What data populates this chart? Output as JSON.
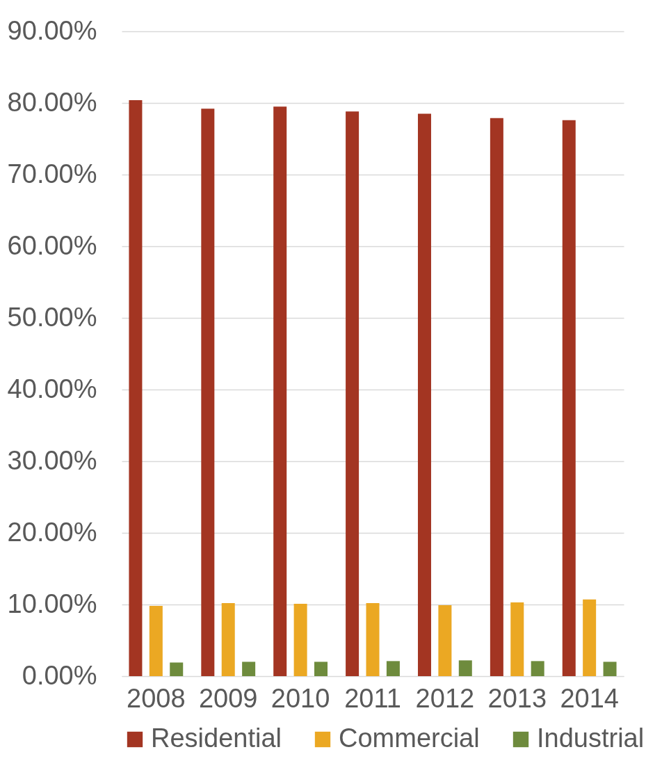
{
  "chart_data": {
    "type": "bar",
    "categories": [
      "2008",
      "2009",
      "2010",
      "2011",
      "2012",
      "2013",
      "2014"
    ],
    "series": [
      {
        "name": "Residential",
        "color": "#a33522",
        "values": [
          80.4,
          79.2,
          79.5,
          78.8,
          78.5,
          77.9,
          77.6
        ]
      },
      {
        "name": "Commercial",
        "color": "#eba823",
        "values": [
          9.8,
          10.2,
          10.1,
          10.2,
          9.9,
          10.3,
          10.7
        ]
      },
      {
        "name": "Industrial",
        "color": "#6e8b3d",
        "values": [
          1.9,
          2.0,
          2.0,
          2.1,
          2.2,
          2.1,
          2.0
        ]
      }
    ],
    "ylim": [
      0,
      90
    ],
    "yticks": [
      {
        "value": 0,
        "label": "0.00%"
      },
      {
        "value": 10,
        "label": "10.00%"
      },
      {
        "value": 20,
        "label": "20.00%"
      },
      {
        "value": 30,
        "label": "30.00%"
      },
      {
        "value": 40,
        "label": "40.00%"
      },
      {
        "value": 50,
        "label": "50.00%"
      },
      {
        "value": 60,
        "label": "60.00%"
      },
      {
        "value": 70,
        "label": "70.00%"
      },
      {
        "value": 80,
        "label": "80.00%"
      },
      {
        "value": 90,
        "label": "90.00%"
      }
    ],
    "grid": "y",
    "legend": "bottom"
  }
}
